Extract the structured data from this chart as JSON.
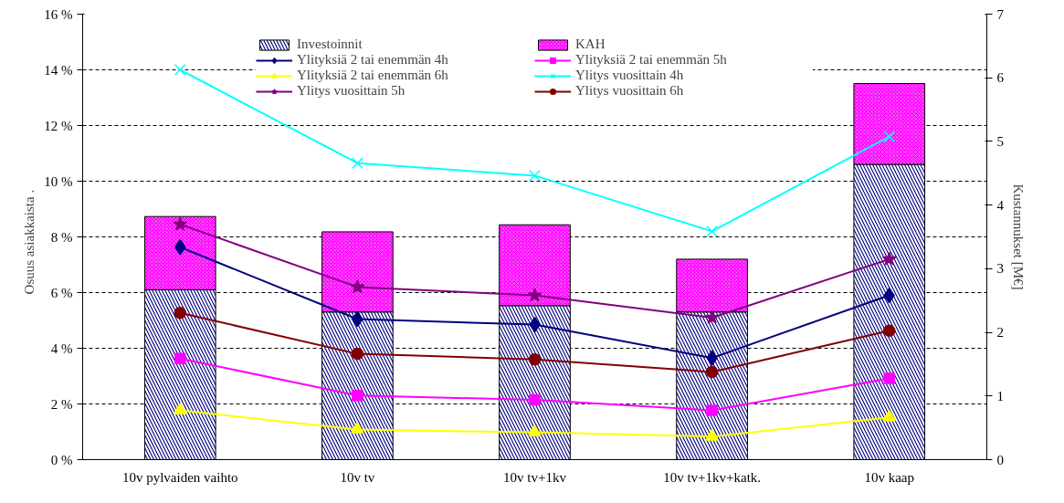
{
  "chart_data": {
    "type": "bar",
    "categories": [
      "10v pylvaiden vaihto",
      "10v tv",
      "10v tv+1kv",
      "10v tv+1kv+katk.",
      "10v kaap"
    ],
    "ylabel": "Osuus asiakkaista    .",
    "y2label": "Kustannukset [M€]",
    "ylim": [
      0,
      16
    ],
    "yticks": [
      {
        "value": 0,
        "label": "0 %"
      },
      {
        "value": 2,
        "label": "2 %"
      },
      {
        "value": 4,
        "label": "4 %"
      },
      {
        "value": 6,
        "label": "6 %"
      },
      {
        "value": 8,
        "label": "8 %"
      },
      {
        "value": 10,
        "label": "10 %"
      },
      {
        "value": 12,
        "label": "12 %"
      },
      {
        "value": 14,
        "label": "14 %"
      },
      {
        "value": 16,
        "label": "16 %"
      }
    ],
    "y2lim": [
      0,
      7
    ],
    "y2ticks": [
      0,
      1,
      2,
      3,
      4,
      5,
      6,
      7
    ],
    "stacked": true,
    "grid": "y",
    "legend": "top",
    "line_style": "solid",
    "series": [
      {
        "name": "Investoinnit",
        "axis": "y2",
        "color": "#000080",
        "values": [
          2.67,
          2.32,
          2.42,
          2.32,
          4.64
        ]
      },
      {
        "name": "KAH",
        "axis": "y2",
        "color": "#ff00ff",
        "values": [
          1.15,
          1.26,
          1.27,
          0.83,
          1.27
        ]
      },
      {
        "name": "Ylityksiä 2 tai enemmän 4h",
        "type": "line",
        "marker": "diamond",
        "color": "#000080",
        "values": [
          7.63,
          5.05,
          4.85,
          3.65,
          5.9
        ]
      },
      {
        "name": "Ylityksiä 2 tai enemmän 5h",
        "type": "line",
        "marker": "square",
        "color": "#ff00ff",
        "values": [
          3.63,
          2.3,
          2.15,
          1.77,
          2.92
        ]
      },
      {
        "name": "Ylityksiä 2 tai enemmän 6h",
        "type": "line",
        "marker": "triangle",
        "color": "#ffff00",
        "values": [
          1.77,
          1.08,
          0.98,
          0.83,
          1.52
        ]
      },
      {
        "name": "Ylitys vuosittain 4h",
        "type": "line",
        "marker": "cross",
        "color": "#00ffff",
        "values": [
          14.0,
          10.65,
          10.2,
          8.2,
          11.6
        ]
      },
      {
        "name": "Ylitys vuosittain 5h",
        "type": "line",
        "marker": "star",
        "color": "#800080",
        "values": [
          8.45,
          6.2,
          5.9,
          5.1,
          7.2
        ]
      },
      {
        "name": "Ylitys vuosittain 6h",
        "type": "line",
        "marker": "circle",
        "color": "#800000",
        "values": [
          5.27,
          3.8,
          3.6,
          3.15,
          4.63
        ]
      }
    ]
  }
}
